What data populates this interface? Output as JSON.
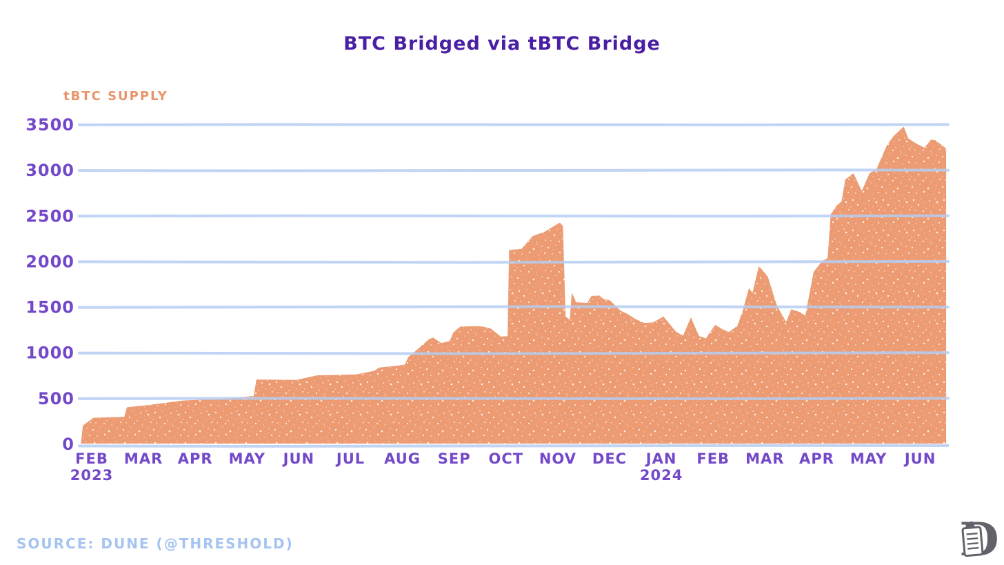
{
  "title": "BTC Bridged via tBTC Bridge",
  "y_axis_title": "tBTC SUPPLY",
  "source_note": "SOURCE: DUNE (@THRESHOLD)",
  "colors": {
    "background": "#ffffff",
    "title": "#4a1fa3",
    "axis_labels": "#7348c9",
    "area_fill": "#ec9b72",
    "speckle": "#ffffff",
    "gridline": "#b5cdf2",
    "source_text": "#a6c4f2",
    "y_axis_title": "#e9946a",
    "logo": "#62626a"
  },
  "chart_data": {
    "type": "area",
    "title": "BTC Bridged via tBTC Bridge",
    "ylabel": "tBTC SUPPLY",
    "series_name": "tBTC Supply (BTC bridged)",
    "ylim": [
      0,
      3500
    ],
    "yticks": [
      0,
      500,
      1000,
      1500,
      2000,
      2500,
      3000,
      3500
    ],
    "grid": "horizontal",
    "legend": "none",
    "x_unit": "months since Feb 2023",
    "x_ticks": [
      {
        "label": "FEB",
        "sub": "2023"
      },
      {
        "label": "MAR"
      },
      {
        "label": "APR"
      },
      {
        "label": "MAY"
      },
      {
        "label": "JUN"
      },
      {
        "label": "JUL"
      },
      {
        "label": "AUG"
      },
      {
        "label": "SEP"
      },
      {
        "label": "OCT"
      },
      {
        "label": "NOV"
      },
      {
        "label": "DEC"
      },
      {
        "label": "JAN",
        "sub": "2024"
      },
      {
        "label": "FEB"
      },
      {
        "label": "MAR"
      },
      {
        "label": "APR"
      },
      {
        "label": "MAY"
      },
      {
        "label": "JUN"
      }
    ],
    "points": [
      [
        -0.21,
        0
      ],
      [
        -0.17,
        205
      ],
      [
        0.03,
        290
      ],
      [
        0.63,
        300
      ],
      [
        0.68,
        405
      ],
      [
        1.09,
        430
      ],
      [
        1.78,
        480
      ],
      [
        2.62,
        500
      ],
      [
        3.13,
        530
      ],
      [
        3.18,
        710
      ],
      [
        3.95,
        705
      ],
      [
        4.35,
        755
      ],
      [
        5.11,
        765
      ],
      [
        5.46,
        805
      ],
      [
        5.55,
        840
      ],
      [
        5.95,
        865
      ],
      [
        6.05,
        875
      ],
      [
        6.11,
        955
      ],
      [
        6.27,
        1030
      ],
      [
        6.51,
        1150
      ],
      [
        6.59,
        1170
      ],
      [
        6.75,
        1110
      ],
      [
        6.91,
        1130
      ],
      [
        6.99,
        1230
      ],
      [
        7.12,
        1290
      ],
      [
        7.42,
        1295
      ],
      [
        7.55,
        1290
      ],
      [
        7.7,
        1270
      ],
      [
        7.9,
        1180
      ],
      [
        8.03,
        1185
      ],
      [
        8.06,
        2130
      ],
      [
        8.3,
        2140
      ],
      [
        8.51,
        2280
      ],
      [
        8.75,
        2330
      ],
      [
        9.04,
        2430
      ],
      [
        9.1,
        2390
      ],
      [
        9.15,
        1400
      ],
      [
        9.23,
        1365
      ],
      [
        9.27,
        1660
      ],
      [
        9.36,
        1555
      ],
      [
        9.57,
        1550
      ],
      [
        9.65,
        1625
      ],
      [
        9.8,
        1630
      ],
      [
        9.89,
        1590
      ],
      [
        10.0,
        1580
      ],
      [
        10.21,
        1465
      ],
      [
        10.36,
        1425
      ],
      [
        10.49,
        1375
      ],
      [
        10.67,
        1330
      ],
      [
        10.84,
        1335
      ],
      [
        11.04,
        1400
      ],
      [
        11.28,
        1235
      ],
      [
        11.42,
        1190
      ],
      [
        11.57,
        1390
      ],
      [
        11.73,
        1185
      ],
      [
        11.86,
        1160
      ],
      [
        12.04,
        1310
      ],
      [
        12.18,
        1260
      ],
      [
        12.31,
        1230
      ],
      [
        12.47,
        1300
      ],
      [
        12.58,
        1480
      ],
      [
        12.69,
        1710
      ],
      [
        12.76,
        1660
      ],
      [
        12.88,
        1950
      ],
      [
        12.97,
        1900
      ],
      [
        13.06,
        1830
      ],
      [
        13.23,
        1520
      ],
      [
        13.41,
        1340
      ],
      [
        13.51,
        1480
      ],
      [
        13.67,
        1450
      ],
      [
        13.78,
        1410
      ],
      [
        13.94,
        1890
      ],
      [
        14.11,
        2010
      ],
      [
        14.21,
        2040
      ],
      [
        14.27,
        2520
      ],
      [
        14.39,
        2620
      ],
      [
        14.48,
        2660
      ],
      [
        14.55,
        2900
      ],
      [
        14.71,
        2970
      ],
      [
        14.87,
        2775
      ],
      [
        15.02,
        2970
      ],
      [
        15.15,
        3010
      ],
      [
        15.35,
        3270
      ],
      [
        15.48,
        3375
      ],
      [
        15.68,
        3480
      ],
      [
        15.77,
        3350
      ],
      [
        15.91,
        3300
      ],
      [
        16.08,
        3250
      ],
      [
        16.21,
        3340
      ],
      [
        16.3,
        3330
      ],
      [
        16.5,
        3240
      ]
    ]
  },
  "logo": {
    "letter": "D"
  }
}
